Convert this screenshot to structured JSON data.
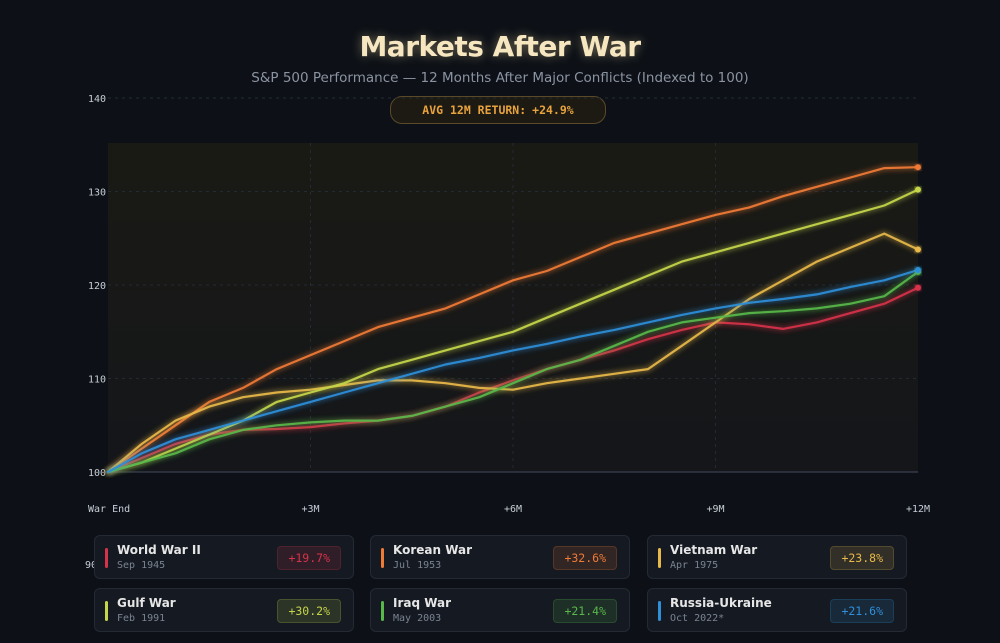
{
  "header": {
    "title": "Markets After War",
    "subtitle": "S&P 500 Performance — 12 Months After Major Conflicts (Indexed to 100)",
    "badge_label": "AVG 12M RETURN:",
    "badge_value": "+24.9%"
  },
  "chart_data": {
    "type": "line",
    "title": "Markets After War",
    "subtitle": "S&P 500 Performance — 12 Months After Major Conflicts (Indexed to 100)",
    "xlabel": "",
    "ylabel": "",
    "xlim": [
      0,
      12
    ],
    "ylim": [
      90,
      140
    ],
    "x_ticks": [
      {
        "value": 0,
        "label": "War End"
      },
      {
        "value": 3,
        "label": "+3M"
      },
      {
        "value": 6,
        "label": "+6M"
      },
      {
        "value": 9,
        "label": "+9M"
      },
      {
        "value": 12,
        "label": "+12M"
      }
    ],
    "y_ticks": [
      {
        "value": 100,
        "label": "100"
      },
      {
        "value": 110,
        "label": "110"
      },
      {
        "value": 120,
        "label": "120"
      },
      {
        "value": 130,
        "label": "130"
      },
      {
        "value": 140,
        "label": "140"
      }
    ],
    "y_extra_label": "90",
    "grid": true,
    "baseline": 100,
    "series": [
      {
        "name": "World War II",
        "color": "#d6334a",
        "x": [
          0,
          0.5,
          1,
          1.5,
          2,
          2.5,
          3,
          3.5,
          4,
          4.5,
          5,
          5.5,
          6,
          6.5,
          7,
          7.5,
          8,
          8.5,
          9,
          9.5,
          10,
          10.5,
          11,
          11.5,
          12
        ],
        "values": [
          100,
          101.5,
          103,
          104,
          104.5,
          104.6,
          104.8,
          105.2,
          105.5,
          106,
          107,
          108.5,
          109.8,
          111,
          112,
          113,
          114.2,
          115.2,
          116,
          115.8,
          115.3,
          116,
          117,
          118,
          119.7
        ]
      },
      {
        "name": "Korean War",
        "color": "#f07a36",
        "x": [
          0,
          0.5,
          1,
          1.5,
          2,
          2.5,
          3,
          3.5,
          4,
          4.5,
          5,
          5.5,
          6,
          6.5,
          7,
          7.5,
          8,
          8.5,
          9,
          9.5,
          10,
          10.5,
          11,
          11.5,
          12
        ],
        "values": [
          100,
          102.5,
          105,
          107.5,
          109,
          111,
          112.5,
          114,
          115.5,
          116.5,
          117.5,
          119,
          120.5,
          121.5,
          123,
          124.5,
          125.5,
          126.5,
          127.5,
          128.3,
          129.5,
          130.5,
          131.5,
          132.5,
          132.6
        ]
      },
      {
        "name": "Vietnam War",
        "color": "#e8b94a",
        "x": [
          0,
          0.5,
          1,
          1.5,
          2,
          2.5,
          3,
          3.5,
          4,
          4.5,
          5,
          5.5,
          6,
          6.5,
          7,
          7.5,
          8,
          8.5,
          9,
          9.5,
          10,
          10.5,
          11,
          11.5,
          12
        ],
        "values": [
          100,
          103,
          105.5,
          107,
          108,
          108.5,
          108.8,
          109.3,
          109.8,
          109.8,
          109.5,
          109,
          108.8,
          109.5,
          110,
          110.5,
          111,
          113.5,
          116,
          118.5,
          120.5,
          122.5,
          124,
          125.5,
          123.8
        ]
      },
      {
        "name": "Gulf War",
        "color": "#c5d64a",
        "x": [
          0,
          0.5,
          1,
          1.5,
          2,
          2.5,
          3,
          3.5,
          4,
          4.5,
          5,
          5.5,
          6,
          6.5,
          7,
          7.5,
          8,
          8.5,
          9,
          9.5,
          10,
          10.5,
          11,
          11.5,
          12
        ],
        "values": [
          100,
          101,
          102.5,
          104,
          105.5,
          107.5,
          108.5,
          109.5,
          111,
          112,
          113,
          114,
          115,
          116.5,
          118,
          119.5,
          121,
          122.5,
          123.5,
          124.5,
          125.5,
          126.5,
          127.5,
          128.5,
          130.2
        ]
      },
      {
        "name": "Iraq War",
        "color": "#58b84a",
        "x": [
          0,
          0.5,
          1,
          1.5,
          2,
          2.5,
          3,
          3.5,
          4,
          4.5,
          5,
          5.5,
          6,
          6.5,
          7,
          7.5,
          8,
          8.5,
          9,
          9.5,
          10,
          10.5,
          11,
          11.5,
          12
        ],
        "values": [
          100,
          101,
          102,
          103.5,
          104.5,
          105,
          105.3,
          105.5,
          105.5,
          106,
          107,
          108,
          109.5,
          111,
          112,
          113.5,
          115,
          116,
          116.5,
          117,
          117.2,
          117.5,
          118,
          118.8,
          121.4
        ]
      },
      {
        "name": "Russia-Ukraine",
        "color": "#2f8fd8",
        "x": [
          0,
          0.5,
          1,
          1.5,
          2,
          2.5,
          3,
          3.5,
          4,
          4.5,
          5,
          5.5,
          6,
          6.5,
          7,
          7.5,
          8,
          8.5,
          9,
          9.5,
          10,
          10.5,
          11,
          11.5,
          12
        ],
        "values": [
          100,
          102,
          103.5,
          104.5,
          105.5,
          106.5,
          107.5,
          108.5,
          109.5,
          110.5,
          111.5,
          112.2,
          113,
          113.7,
          114.5,
          115.2,
          116,
          116.8,
          117.5,
          118.1,
          118.5,
          119,
          119.8,
          120.5,
          121.6
        ]
      }
    ]
  },
  "legend": [
    {
      "name": "World War II",
      "date": "Sep 1945",
      "return": "+19.7%",
      "color": "#d6334a"
    },
    {
      "name": "Korean War",
      "date": "Jul 1953",
      "return": "+32.6%",
      "color": "#f07a36"
    },
    {
      "name": "Vietnam War",
      "date": "Apr 1975",
      "return": "+23.8%",
      "color": "#e8b94a"
    },
    {
      "name": "Gulf War",
      "date": "Feb 1991",
      "return": "+30.2%",
      "color": "#c5d64a"
    },
    {
      "name": "Iraq War",
      "date": "May 2003",
      "return": "+21.4%",
      "color": "#58b84a"
    },
    {
      "name": "Russia-Ukraine",
      "date": "Oct 2022*",
      "return": "+21.6%",
      "color": "#2f8fd8"
    }
  ]
}
